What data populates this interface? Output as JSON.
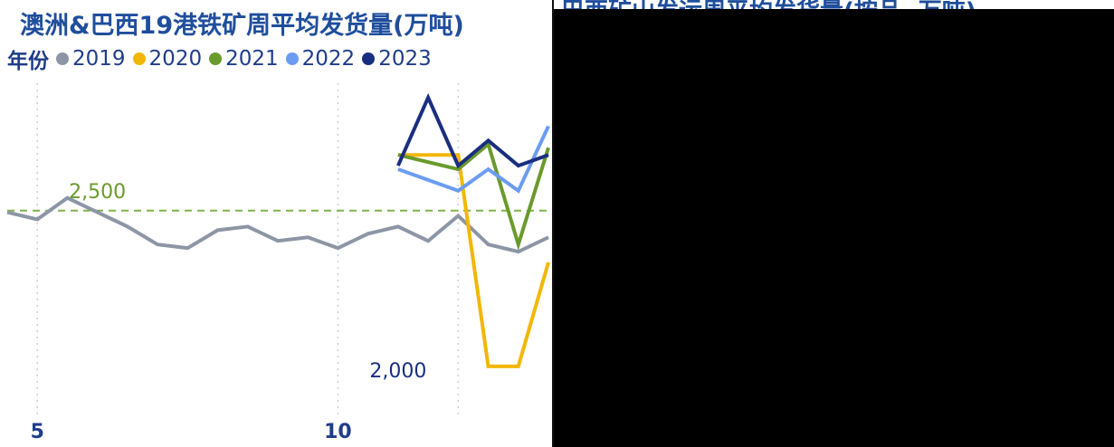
{
  "chart_data": {
    "type": "line",
    "title": "澳洲&巴西19港铁矿周平均发货量(万吨)",
    "legend": {
      "title": "年份",
      "placement": "top-left",
      "items": [
        {
          "name": "2019",
          "color": "#8c96a6"
        },
        {
          "name": "2020",
          "color": "#f2b705"
        },
        {
          "name": "2021",
          "color": "#6a9a2c"
        },
        {
          "name": "2022",
          "color": "#6b9cf2"
        },
        {
          "name": "2023",
          "color": "#1a2e80"
        }
      ]
    },
    "x_ticks": [
      5,
      10
    ],
    "y_ticks": [
      {
        "value": 2500,
        "label": "2,500"
      },
      {
        "value": 2000,
        "label": "2,000"
      }
    ],
    "xlim": [
      4.5,
      13.5
    ],
    "ylim": [
      1800,
      2800
    ],
    "grid": "dotted vertical gridlines",
    "series": [
      {
        "name": "2019",
        "color": "#8c96a6",
        "x": [
          4.5,
          5,
          5.5,
          6,
          6.5,
          7,
          7.5,
          8,
          8.5,
          9,
          9.5,
          10,
          10.5,
          11,
          11.5,
          12,
          12.5,
          13,
          13.5
        ],
        "y": [
          2440,
          2420,
          2480,
          2440,
          2400,
          2350,
          2340,
          2390,
          2400,
          2360,
          2370,
          2340,
          2380,
          2400,
          2360,
          2430,
          2350,
          2330,
          2370
        ]
      },
      {
        "name": "2020",
        "color": "#f2b705",
        "x": [
          11,
          12,
          12.5,
          13,
          13.5
        ],
        "y": [
          2600,
          2600,
          2010,
          2010,
          2300
        ]
      },
      {
        "name": "2021",
        "color": "#6a9a2c",
        "x": [
          11,
          12,
          12.5,
          13,
          13.5
        ],
        "y": [
          2600,
          2560,
          2630,
          2350,
          2620
        ]
      },
      {
        "name": "2022",
        "color": "#6b9cf2",
        "x": [
          11,
          12,
          12.5,
          13,
          13.5
        ],
        "y": [
          2560,
          2500,
          2560,
          2500,
          2680
        ]
      },
      {
        "name": "2023",
        "color": "#1a2e80",
        "x": [
          11,
          11.5,
          12,
          12.5,
          13,
          13.5
        ],
        "y": [
          2570,
          2760,
          2570,
          2640,
          2570,
          2600
        ]
      }
    ],
    "data_labels": [
      {
        "text": "2,500",
        "x": 6.0,
        "y": 2500,
        "color": "#6a9a2c"
      },
      {
        "text": "2,000",
        "x": 11.0,
        "y": 2000,
        "color": "#1a2e80"
      }
    ]
  },
  "right_chart": {
    "title": "巴西矿山发运周平均发货量(按品, 万吨)"
  }
}
